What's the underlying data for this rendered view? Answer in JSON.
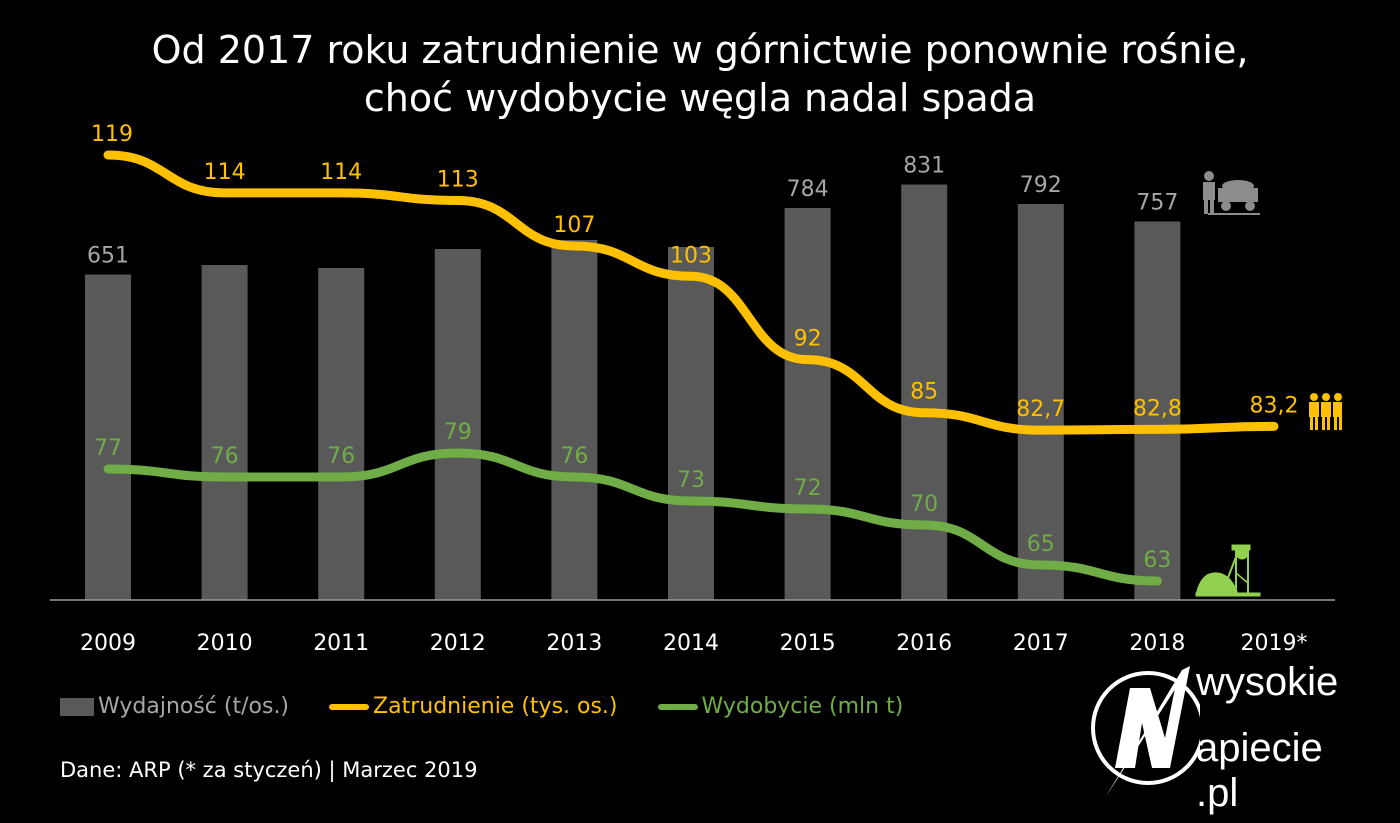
{
  "title_line1": "Od 2017 roku zatrudnienie w górnictwie ponownie rośnie,",
  "title_line2": "choć wydobycie węgla nadal spada",
  "chart_data": {
    "type": "bar+line",
    "title": "Od 2017 roku zatrudnienie w górnictwie ponownie rośnie, choć wydobycie węgla nadal spada",
    "categories": [
      "2009",
      "2010",
      "2011",
      "2012",
      "2013",
      "2014",
      "2015",
      "2016",
      "2017",
      "2018",
      "2019*"
    ],
    "series": [
      {
        "name": "Wydajność (t/os.)",
        "type": "bar",
        "color": "#595959",
        "label_color": "#a6a6a6",
        "values": [
          651,
          670,
          664,
          702,
          720,
          706,
          784,
          831,
          792,
          757,
          null
        ],
        "labels": [
          "651",
          "",
          "",
          "",
          "",
          "",
          "784",
          "831",
          "792",
          "757",
          ""
        ]
      },
      {
        "name": "Zatrudnienie (tys. os.)",
        "type": "line",
        "color": "#ffc000",
        "values": [
          119,
          114,
          114,
          113,
          107,
          103,
          92,
          85,
          82.7,
          82.8,
          83.2
        ],
        "labels": [
          "119",
          "114",
          "114",
          "113",
          "107",
          "103",
          "92",
          "85",
          "82,7",
          "82,8",
          "83,2"
        ]
      },
      {
        "name": "Wydobycie (mln t)",
        "type": "line",
        "color": "#70ad47",
        "values": [
          77,
          76,
          76,
          79,
          76,
          73,
          72,
          70,
          65,
          63,
          null
        ],
        "labels": [
          "77",
          "76",
          "76",
          "79",
          "76",
          "73",
          "72",
          "70",
          "65",
          "63",
          ""
        ]
      }
    ],
    "legend_position": "bottom-left",
    "grid": false
  },
  "icons": {
    "bar": "miner-cart-icon",
    "employment": "people-icon",
    "production": "mine-shaft-icon"
  },
  "source": "Dane: ARP (* za styczeń)  |  Marzec 2019",
  "logo": {
    "line1": "wysokie",
    "line2": "apiecie .pl"
  }
}
